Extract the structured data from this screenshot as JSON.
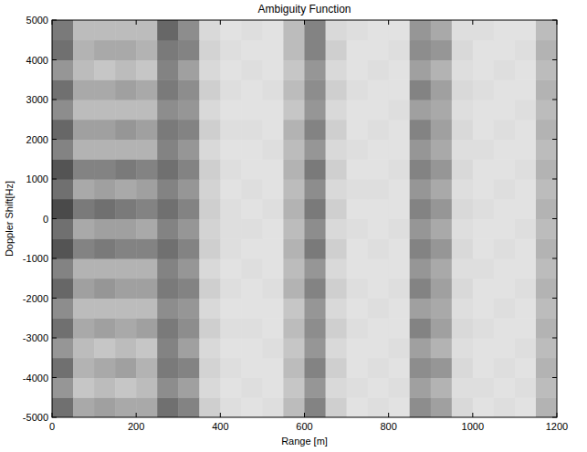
{
  "chart_data": {
    "type": "heatmap",
    "title": "Ambiguity Function",
    "x_label": "Range [m]",
    "y_label": "Doppler Shift[Hz]",
    "xlim": [
      0,
      1200
    ],
    "ylim": [
      -5000,
      5000
    ],
    "xticks": [
      0,
      200,
      400,
      600,
      800,
      1000,
      1200
    ],
    "yticks": [
      -5000,
      -4000,
      -3000,
      -2000,
      -1000,
      0,
      1000,
      2000,
      3000,
      4000,
      5000
    ],
    "zlim": [
      0,
      1
    ],
    "x": [
      25,
      75,
      125,
      175,
      225,
      275,
      325,
      375,
      425,
      475,
      525,
      575,
      625,
      675,
      725,
      775,
      825,
      875,
      925,
      975,
      1025,
      1075,
      1125,
      1175
    ],
    "y": [
      -4750,
      -4250,
      -3750,
      -3250,
      -2750,
      -2250,
      -1750,
      -1250,
      -750,
      -250,
      250,
      750,
      1250,
      1750,
      2250,
      2750,
      3250,
      3750,
      4250,
      4750
    ],
    "cells": [
      [
        0.7,
        0.4,
        0.45,
        0.4,
        0.4,
        0.7,
        0.6,
        0.2,
        0.12,
        0.1,
        0.12,
        0.3,
        0.6,
        0.2,
        0.1,
        0.12,
        0.1,
        0.55,
        0.45,
        0.15,
        0.1,
        0.12,
        0.1,
        0.35
      ],
      [
        0.5,
        0.25,
        0.3,
        0.25,
        0.3,
        0.55,
        0.45,
        0.15,
        0.1,
        0.12,
        0.1,
        0.25,
        0.5,
        0.15,
        0.12,
        0.1,
        0.12,
        0.45,
        0.35,
        0.12,
        0.12,
        0.1,
        0.12,
        0.3
      ],
      [
        0.7,
        0.35,
        0.4,
        0.45,
        0.35,
        0.65,
        0.6,
        0.18,
        0.12,
        0.1,
        0.1,
        0.3,
        0.6,
        0.2,
        0.1,
        0.12,
        0.1,
        0.55,
        0.5,
        0.15,
        0.1,
        0.12,
        0.1,
        0.35
      ],
      [
        0.5,
        0.3,
        0.25,
        0.3,
        0.25,
        0.6,
        0.45,
        0.15,
        0.1,
        0.1,
        0.12,
        0.25,
        0.5,
        0.15,
        0.1,
        0.1,
        0.12,
        0.45,
        0.35,
        0.12,
        0.1,
        0.1,
        0.12,
        0.3
      ],
      [
        0.7,
        0.4,
        0.45,
        0.4,
        0.45,
        0.65,
        0.55,
        0.2,
        0.12,
        0.12,
        0.1,
        0.3,
        0.55,
        0.2,
        0.12,
        0.1,
        0.1,
        0.6,
        0.45,
        0.15,
        0.12,
        0.1,
        0.1,
        0.35
      ],
      [
        0.55,
        0.3,
        0.3,
        0.3,
        0.3,
        0.55,
        0.5,
        0.15,
        0.1,
        0.1,
        0.1,
        0.25,
        0.5,
        0.15,
        0.1,
        0.12,
        0.1,
        0.45,
        0.4,
        0.12,
        0.1,
        0.12,
        0.1,
        0.3
      ],
      [
        0.75,
        0.45,
        0.5,
        0.45,
        0.45,
        0.65,
        0.6,
        0.2,
        0.12,
        0.1,
        0.12,
        0.35,
        0.6,
        0.2,
        0.12,
        0.1,
        0.12,
        0.6,
        0.45,
        0.15,
        0.1,
        0.1,
        0.12,
        0.35
      ],
      [
        0.6,
        0.35,
        0.35,
        0.35,
        0.35,
        0.6,
        0.5,
        0.15,
        0.1,
        0.12,
        0.1,
        0.3,
        0.5,
        0.15,
        0.1,
        0.1,
        0.1,
        0.5,
        0.4,
        0.12,
        0.12,
        0.1,
        0.1,
        0.3
      ],
      [
        0.85,
        0.6,
        0.65,
        0.6,
        0.6,
        0.7,
        0.6,
        0.2,
        0.12,
        0.1,
        0.1,
        0.35,
        0.65,
        0.2,
        0.1,
        0.12,
        0.1,
        0.6,
        0.5,
        0.15,
        0.1,
        0.12,
        0.1,
        0.35
      ],
      [
        0.7,
        0.4,
        0.45,
        0.45,
        0.4,
        0.6,
        0.5,
        0.18,
        0.12,
        0.12,
        0.1,
        0.3,
        0.55,
        0.15,
        0.12,
        0.1,
        0.12,
        0.5,
        0.4,
        0.12,
        0.1,
        0.1,
        0.12,
        0.3
      ],
      [
        0.9,
        0.65,
        0.7,
        0.65,
        0.6,
        0.7,
        0.6,
        0.2,
        0.12,
        0.1,
        0.12,
        0.35,
        0.65,
        0.2,
        0.1,
        0.1,
        0.1,
        0.6,
        0.5,
        0.15,
        0.12,
        0.1,
        0.1,
        0.35
      ],
      [
        0.7,
        0.4,
        0.45,
        0.4,
        0.45,
        0.6,
        0.5,
        0.18,
        0.1,
        0.12,
        0.1,
        0.3,
        0.55,
        0.15,
        0.12,
        0.12,
        0.1,
        0.5,
        0.4,
        0.12,
        0.1,
        0.12,
        0.1,
        0.3
      ],
      [
        0.85,
        0.6,
        0.6,
        0.65,
        0.6,
        0.7,
        0.6,
        0.2,
        0.12,
        0.1,
        0.1,
        0.35,
        0.65,
        0.2,
        0.1,
        0.1,
        0.12,
        0.6,
        0.5,
        0.15,
        0.1,
        0.1,
        0.12,
        0.35
      ],
      [
        0.6,
        0.35,
        0.35,
        0.35,
        0.35,
        0.6,
        0.5,
        0.15,
        0.1,
        0.1,
        0.12,
        0.3,
        0.5,
        0.15,
        0.12,
        0.1,
        0.1,
        0.5,
        0.4,
        0.12,
        0.12,
        0.1,
        0.1,
        0.3
      ],
      [
        0.75,
        0.45,
        0.45,
        0.5,
        0.45,
        0.65,
        0.6,
        0.2,
        0.12,
        0.12,
        0.1,
        0.35,
        0.6,
        0.2,
        0.1,
        0.12,
        0.1,
        0.6,
        0.45,
        0.15,
        0.1,
        0.12,
        0.1,
        0.35
      ],
      [
        0.55,
        0.3,
        0.3,
        0.3,
        0.3,
        0.55,
        0.5,
        0.15,
        0.1,
        0.1,
        0.1,
        0.25,
        0.5,
        0.15,
        0.1,
        0.1,
        0.12,
        0.45,
        0.4,
        0.12,
        0.1,
        0.1,
        0.12,
        0.3
      ],
      [
        0.7,
        0.4,
        0.4,
        0.45,
        0.4,
        0.65,
        0.55,
        0.2,
        0.12,
        0.1,
        0.12,
        0.3,
        0.55,
        0.2,
        0.12,
        0.1,
        0.1,
        0.6,
        0.45,
        0.15,
        0.12,
        0.1,
        0.1,
        0.35
      ],
      [
        0.5,
        0.3,
        0.25,
        0.3,
        0.25,
        0.6,
        0.45,
        0.15,
        0.1,
        0.12,
        0.1,
        0.25,
        0.5,
        0.15,
        0.1,
        0.12,
        0.1,
        0.45,
        0.35,
        0.12,
        0.1,
        0.12,
        0.1,
        0.3
      ],
      [
        0.7,
        0.35,
        0.4,
        0.4,
        0.35,
        0.65,
        0.6,
        0.18,
        0.12,
        0.1,
        0.1,
        0.3,
        0.6,
        0.2,
        0.1,
        0.1,
        0.12,
        0.55,
        0.5,
        0.15,
        0.1,
        0.1,
        0.12,
        0.35
      ],
      [
        0.65,
        0.3,
        0.3,
        0.3,
        0.3,
        0.75,
        0.55,
        0.15,
        0.1,
        0.12,
        0.1,
        0.3,
        0.6,
        0.15,
        0.12,
        0.1,
        0.1,
        0.5,
        0.4,
        0.12,
        0.12,
        0.1,
        0.1,
        0.3
      ]
    ]
  }
}
